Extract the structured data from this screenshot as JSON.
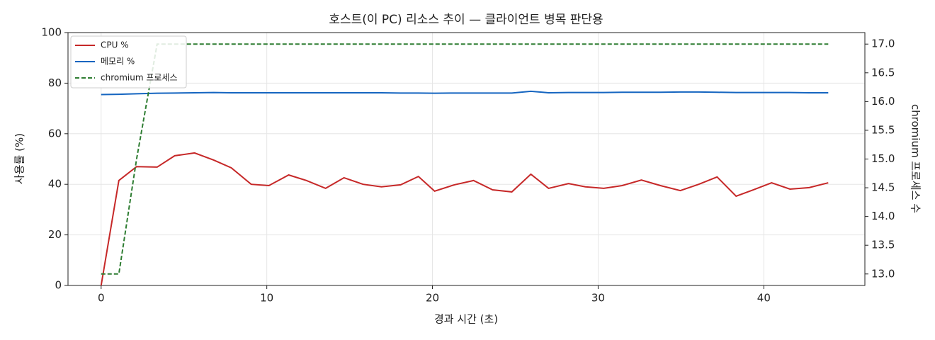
{
  "chart_data": {
    "type": "line",
    "title": "호스트(이 PC) 리소스 추이 — 클라이언트 병목 판단용",
    "x_label": "경과 시간 (초)",
    "y_label": "사용률 (%)",
    "y2_label": "chromium 프로세스 수",
    "x": [
      0,
      1.07,
      2.14,
      3.38,
      4.44,
      5.64,
      6.79,
      7.86,
      9.06,
      10.13,
      11.32,
      12.39,
      13.55,
      14.66,
      15.81,
      16.92,
      18.08,
      19.15,
      20.13,
      21.32,
      22.48,
      23.63,
      24.79,
      25.94,
      27.01,
      28.21,
      29.23,
      30.34,
      31.45,
      32.61,
      33.76,
      34.96,
      36.07,
      37.18,
      38.33,
      39.36,
      40.47,
      41.58,
      42.74,
      43.89
    ],
    "series": [
      {
        "name": "CPU %",
        "color": "#c62828",
        "style": "solid",
        "axis": "y",
        "values": [
          0,
          41.5,
          47,
          46.8,
          51.3,
          52.4,
          49.6,
          46.5,
          40,
          39.5,
          43.7,
          41.5,
          38.4,
          42.6,
          40,
          39,
          39.8,
          43.1,
          37.3,
          39.8,
          41.5,
          37.8,
          37,
          44,
          38.4,
          40.3,
          39,
          38.4,
          39.5,
          41.7,
          39.5,
          37.5,
          40,
          42.9,
          35.3,
          37.8,
          40.6,
          38.1,
          38.7,
          40.6
        ]
      },
      {
        "name": "메모리 %",
        "color": "#1565c0",
        "style": "solid",
        "axis": "y",
        "values": [
          75.5,
          75.6,
          75.8,
          76.0,
          76.1,
          76.2,
          76.3,
          76.2,
          76.2,
          76.2,
          76.2,
          76.2,
          76.2,
          76.2,
          76.2,
          76.2,
          76.1,
          76.1,
          76.0,
          76.1,
          76.1,
          76.1,
          76.1,
          76.8,
          76.2,
          76.3,
          76.3,
          76.3,
          76.4,
          76.4,
          76.4,
          76.5,
          76.5,
          76.4,
          76.3,
          76.3,
          76.3,
          76.3,
          76.2,
          76.2
        ]
      },
      {
        "name": "chromium 프로세스",
        "color": "#2e7d32",
        "style": "dashed",
        "axis": "y2",
        "values": [
          13,
          13,
          15,
          17,
          17,
          17,
          17,
          17,
          17,
          17,
          17,
          17,
          17,
          17,
          17,
          17,
          17,
          17,
          17,
          17,
          17,
          17,
          17,
          17,
          17,
          17,
          17,
          17,
          17,
          17,
          17,
          17,
          17,
          17,
          17,
          17,
          17,
          17,
          17,
          17
        ]
      }
    ],
    "xlim": [
      -2.0,
      46.1
    ],
    "xticks": [
      0,
      10,
      20,
      30,
      40
    ],
    "ylim": [
      0,
      100
    ],
    "yticks": [
      0,
      20,
      40,
      60,
      80,
      100
    ],
    "y2lim": [
      12.8,
      17.2
    ],
    "y2ticks": [
      {
        "value": 13,
        "label": "13.0"
      },
      {
        "value": 13.5,
        "label": "13.5"
      },
      {
        "value": 14,
        "label": "14.0"
      },
      {
        "value": 14.5,
        "label": "14.5"
      },
      {
        "value": 15,
        "label": "15.0"
      },
      {
        "value": 15.5,
        "label": "15.5"
      },
      {
        "value": 16,
        "label": "16.0"
      },
      {
        "value": 16.5,
        "label": "16.5"
      },
      {
        "value": 17,
        "label": "17.0"
      }
    ],
    "grid": true,
    "legend": "upper left"
  }
}
